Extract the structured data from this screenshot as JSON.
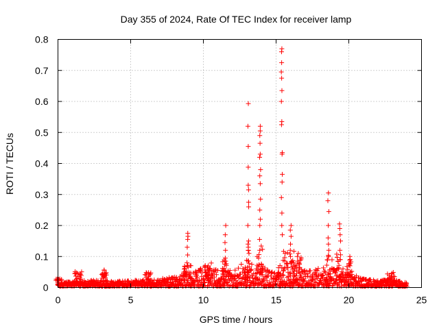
{
  "chart_data": {
    "type": "scatter",
    "title": "Day 355 of 2024, Rate Of TEC Index for receiver lamp",
    "xlabel": "GPS time / hours",
    "ylabel": "ROTI / TECUs",
    "xlim": [
      0,
      25
    ],
    "ylim": [
      0,
      0.8
    ],
    "xticks": [
      "0",
      "5",
      "10",
      "15",
      "20",
      "25"
    ],
    "yticks": [
      "0",
      "0.1",
      "0.2",
      "0.3",
      "0.4",
      "0.5",
      "0.6",
      "0.7",
      "0.8"
    ],
    "grid": true,
    "marker": "+",
    "color": "#ff0000",
    "spikes": [
      {
        "x": 0.0,
        "values": [
          0.01,
          0.012,
          0.008
        ]
      },
      {
        "x": 1.4,
        "values": [
          0.045,
          0.035
        ]
      },
      {
        "x": 3.1,
        "values": [
          0.045,
          0.04
        ]
      },
      {
        "x": 6.2,
        "values": [
          0.048,
          0.035
        ]
      },
      {
        "x": 8.9,
        "values": [
          0.175,
          0.165,
          0.155,
          0.13,
          0.105,
          0.08,
          0.07
        ]
      },
      {
        "x": 10.3,
        "values": [
          0.07,
          0.065,
          0.06
        ]
      },
      {
        "x": 11.5,
        "values": [
          0.2,
          0.17,
          0.145,
          0.12,
          0.095,
          0.085,
          0.075
        ]
      },
      {
        "x": 13.1,
        "values": [
          0.593,
          0.52,
          0.455,
          0.388,
          0.33,
          0.315,
          0.275,
          0.26,
          0.2,
          0.15,
          0.14,
          0.13,
          0.12,
          0.11
        ]
      },
      {
        "x": 13.9,
        "values": [
          0.52,
          0.505,
          0.49,
          0.465,
          0.43,
          0.42,
          0.38,
          0.36,
          0.335,
          0.285,
          0.25,
          0.22,
          0.2,
          0.155,
          0.12
        ]
      },
      {
        "x": 15.4,
        "values": [
          0.77,
          0.76,
          0.725,
          0.695,
          0.675,
          0.635,
          0.6,
          0.535,
          0.525,
          0.435,
          0.43,
          0.365,
          0.34,
          0.29,
          0.24,
          0.2,
          0.17
        ]
      },
      {
        "x": 16.0,
        "values": [
          0.2,
          0.185,
          0.165,
          0.14,
          0.12,
          0.1
        ]
      },
      {
        "x": 16.5,
        "values": [
          0.11,
          0.1,
          0.085
        ]
      },
      {
        "x": 18.6,
        "values": [
          0.305,
          0.28,
          0.245,
          0.2,
          0.16,
          0.14,
          0.12,
          0.1
        ]
      },
      {
        "x": 19.4,
        "values": [
          0.205,
          0.19,
          0.17,
          0.15,
          0.12,
          0.09
        ]
      },
      {
        "x": 20.1,
        "values": [
          0.1,
          0.09,
          0.07
        ]
      },
      {
        "x": 22.9,
        "values": [
          0.035,
          0.03
        ]
      }
    ],
    "baseline": [
      {
        "x": 0,
        "y": 0.012
      },
      {
        "x": 2,
        "y": 0.02
      },
      {
        "x": 4,
        "y": 0.018
      },
      {
        "x": 6,
        "y": 0.02
      },
      {
        "x": 8,
        "y": 0.03
      },
      {
        "x": 9,
        "y": 0.05
      },
      {
        "x": 10,
        "y": 0.06
      },
      {
        "x": 11,
        "y": 0.055
      },
      {
        "x": 12,
        "y": 0.05
      },
      {
        "x": 13,
        "y": 0.085
      },
      {
        "x": 14,
        "y": 0.07
      },
      {
        "x": 15,
        "y": 0.045
      },
      {
        "x": 16,
        "y": 0.085
      },
      {
        "x": 17,
        "y": 0.05
      },
      {
        "x": 18,
        "y": 0.06
      },
      {
        "x": 19,
        "y": 0.06
      },
      {
        "x": 20,
        "y": 0.055
      },
      {
        "x": 21,
        "y": 0.025
      },
      {
        "x": 22,
        "y": 0.02
      },
      {
        "x": 23,
        "y": 0.022
      },
      {
        "x": 24,
        "y": 0.012
      }
    ],
    "xrange": [
      0,
      24
    ]
  }
}
